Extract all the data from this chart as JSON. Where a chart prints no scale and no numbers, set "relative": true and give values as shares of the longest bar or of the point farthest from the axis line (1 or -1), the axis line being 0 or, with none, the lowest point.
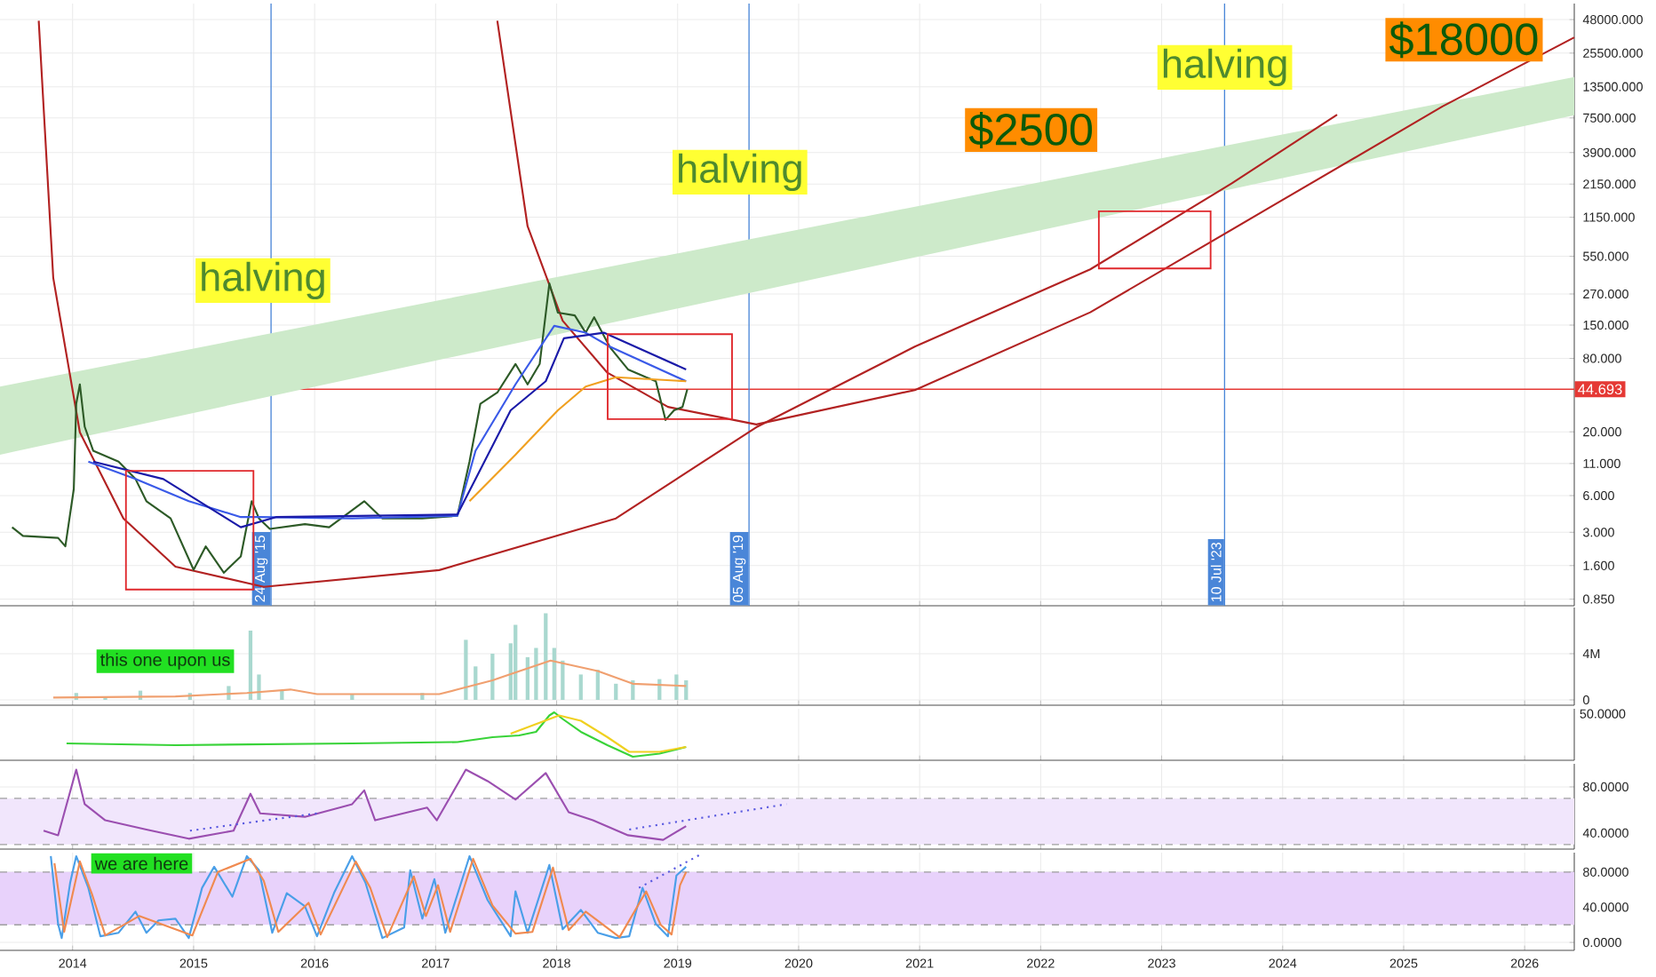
{
  "chart_data": [
    {
      "type": "line",
      "log": true,
      "grid": true,
      "tick_labels": "y",
      "xlim": [
        2013.4,
        2026.41
      ],
      "ylim": [
        0.75,
        65000
      ],
      "xticks": [
        2014,
        2015,
        2016,
        2017,
        2018,
        2019,
        2020,
        2021,
        2022,
        2023,
        2024,
        2025,
        2026
      ],
      "yticks": [
        {
          "value": 0.85,
          "label": "0.850"
        },
        {
          "value": 1.6,
          "label": "1.600"
        },
        {
          "value": 3,
          "label": "3.000"
        },
        {
          "value": 6,
          "label": "6.000"
        },
        {
          "value": 11,
          "label": "11.000"
        },
        {
          "value": 20,
          "label": "20.000"
        },
        {
          "value": 80,
          "label": "80.000"
        },
        {
          "value": 150,
          "label": "150.000"
        },
        {
          "value": 270,
          "label": "270.000"
        },
        {
          "value": 550,
          "label": "550.000"
        },
        {
          "value": 1150,
          "label": "1150.000"
        },
        {
          "value": 2150,
          "label": "2150.000"
        },
        {
          "value": 3900,
          "label": "3900.000"
        },
        {
          "value": 7500,
          "label": "7500.000"
        },
        {
          "value": 13500,
          "label": "13500.000"
        },
        {
          "value": 25500,
          "label": "25500.000"
        },
        {
          "value": 48000,
          "label": "48000.000"
        }
      ],
      "ref_lines": [
        {
          "axis": "y",
          "value": 44.693,
          "label": "44.693",
          "color": "#e53935"
        },
        {
          "axis": "x",
          "value": 2015.64,
          "label": "24 Aug '15",
          "color": "#4a86d8"
        },
        {
          "axis": "x",
          "value": 2019.59,
          "label": "05 Aug '19",
          "color": "#4a86d8"
        },
        {
          "axis": "x",
          "value": 2023.52,
          "label": "10 Jul '23",
          "color": "#4a86d8"
        }
      ],
      "annotations": [
        "halving",
        "halving",
        "halving",
        "$2500",
        "$18000"
      ],
      "series": [
        {
          "type": "line",
          "color": "#8fd18a",
          "x": [
            2013.4,
            2026.41
          ],
          "values": [
            null,
            null
          ],
          "lower": [
            13,
            7900
          ],
          "upper": [
            47,
            16200
          ]
        },
        {
          "type": "line",
          "color": "#b22222",
          "x": [
            2013.72,
            2013.84,
            2014.06,
            2014.42,
            2014.85,
            2015.58,
            2017.03,
            2018.49,
            2019.65,
            2020.96,
            2022.41,
            2023.58,
            2024.45
          ],
          "values": [
            47000,
            366,
            19.8,
            3.9,
            1.57,
            1.07,
            1.47,
            3.9,
            21.8,
            100,
            430,
            2180,
            7960
          ]
        },
        {
          "type": "line",
          "color": "#b22222",
          "x": [
            2017.51,
            2017.76,
            2018.05,
            2018.42,
            2018.92,
            2019.65,
            2020.96,
            2022.41,
            2023.87,
            2025.32,
            2026.41
          ],
          "values": [
            47000,
            970,
            163,
            61,
            32,
            23,
            44,
            191,
            1340,
            9300,
            34300
          ]
        },
        {
          "type": "line",
          "color": "#2d5a27",
          "x": [
            2013.5,
            2013.59,
            2013.88,
            2013.94,
            2014.01,
            2014.03,
            2014.06,
            2014.1,
            2014.17,
            2014.38,
            2014.52,
            2014.61,
            2014.81,
            2015.0,
            2015.1,
            2015.25,
            2015.39,
            2015.48,
            2015.54,
            2015.63,
            2015.92,
            2016.12,
            2016.41,
            2016.56,
            2016.89,
            2017.18,
            2017.28,
            2017.37,
            2017.51,
            2017.66,
            2017.76,
            2017.86,
            2017.94,
            2018.01,
            2018.15,
            2018.24,
            2018.31,
            2018.44,
            2018.59,
            2018.74,
            2018.82,
            2018.9,
            2018.97,
            2019.04,
            2019.08
          ],
          "values": [
            3.3,
            2.8,
            2.7,
            2.3,
            6.8,
            34,
            49,
            22,
            14,
            11.4,
            8.2,
            5.4,
            3.9,
            1.48,
            2.3,
            1.4,
            1.9,
            5.4,
            3.9,
            3.2,
            3.5,
            3.3,
            5.4,
            3.9,
            3.9,
            4.1,
            11.4,
            34,
            42,
            72,
            49,
            72,
            330,
            190,
            180,
            130,
            174,
            99,
            65,
            56,
            52,
            25,
            30,
            32,
            44.693
          ]
        },
        {
          "type": "line",
          "color": "#3a5ae8",
          "x": [
            2014.13,
            2014.52,
            2014.96,
            2015.39,
            2015.54,
            2016.31,
            2017.18,
            2017.33,
            2017.66,
            2017.98,
            2018.24,
            2018.44,
            2019.07
          ],
          "values": [
            11.4,
            8.2,
            5.4,
            4.0,
            4.0,
            3.9,
            4.1,
            14,
            49,
            148,
            130,
            100,
            52
          ]
        },
        {
          "type": "line",
          "color": "#1a1aa8",
          "x": [
            2014.17,
            2014.75,
            2015.39,
            2015.68,
            2017.18,
            2017.62,
            2017.91,
            2018.06,
            2018.39,
            2019.07
          ],
          "values": [
            11.4,
            8.2,
            3.3,
            4.0,
            4.2,
            30,
            52,
            117,
            130,
            65
          ]
        },
        {
          "type": "line",
          "color": "#f0a020",
          "x": [
            2017.28,
            2017.66,
            2018.01,
            2018.24,
            2018.49,
            2019.07
          ],
          "values": [
            5.4,
            13,
            30,
            47,
            56,
            52
          ]
        }
      ]
    },
    {
      "type": "bar",
      "grid": true,
      "tick_labels": "y",
      "xlim": [
        2013.4,
        2026.41
      ],
      "ylim": [
        -460000,
        8000000
      ],
      "xticks": [
        2014,
        2015,
        2016,
        2017,
        2018,
        2019,
        2020,
        2021,
        2022,
        2023,
        2024,
        2025,
        2026
      ],
      "yticks": [
        0,
        {
          "value": 4000000,
          "label": "4M"
        }
      ],
      "annotations": [
        "this one upon us"
      ],
      "series": [
        {
          "type": "bar",
          "color": "#a9d8cf",
          "x": [
            2014.03,
            2014.27,
            2014.56,
            2014.97,
            2015.29,
            2015.47,
            2015.54,
            2015.73,
            2016.31,
            2016.89,
            2017.25,
            2017.33,
            2017.47,
            2017.62,
            2017.66,
            2017.76,
            2017.83,
            2017.91,
            2017.98,
            2018.05,
            2018.2,
            2018.34,
            2018.49,
            2018.63,
            2018.85,
            2018.99,
            2019.07
          ],
          "values": [
            600000,
            300000,
            800000,
            600000,
            1200000,
            6000000,
            2200000,
            800000,
            500000,
            600000,
            5200000,
            2900000,
            4000000,
            4900000,
            6500000,
            3700000,
            4500000,
            7500000,
            4500000,
            3400000,
            2200000,
            2600000,
            1400000,
            1700000,
            1800000,
            2200000,
            1700000
          ]
        },
        {
          "type": "line",
          "color": "#f0a070",
          "x": [
            2013.84,
            2014.85,
            2015.44,
            2015.8,
            2016.02,
            2017.03,
            2017.18,
            2017.47,
            2017.95,
            2018.34,
            2018.63,
            2019.07
          ],
          "values": [
            200000,
            300000,
            600000,
            900000,
            500000,
            500000,
            900000,
            1700000,
            3400000,
            2500000,
            1400000,
            1200000
          ]
        }
      ]
    },
    {
      "type": "line",
      "relative": true,
      "grid": true,
      "tick_labels": false,
      "xlim": [
        2013.4,
        2026.41
      ],
      "xticks": [
        2014,
        2015,
        2016,
        2017,
        2018,
        2019,
        2020,
        2021,
        2022,
        2023,
        2024,
        2025,
        2026
      ],
      "annotations": [
        "50.0000"
      ],
      "series": [
        {
          "color": "#39d339",
          "x": [
            2013.95,
            2014.85,
            2016.31,
            2017.18,
            2017.47,
            2017.69,
            2017.83,
            2017.94,
            2017.98,
            2018.05,
            2018.2,
            2018.42,
            2018.63,
            2018.85,
            2019.07
          ],
          "values": [
            0.3,
            0.26,
            0.3,
            0.33,
            0.44,
            0.48,
            0.56,
            0.93,
            1.0,
            0.85,
            0.56,
            0.26,
            0.0,
            0.07,
            0.22
          ]
        },
        {
          "color": "#f0d020",
          "x": [
            2017.62,
            2018.02,
            2018.2,
            2018.42,
            2018.6,
            2018.85,
            2019.07
          ],
          "values": [
            0.52,
            0.93,
            0.81,
            0.44,
            0.11,
            0.11,
            0.22
          ]
        }
      ]
    },
    {
      "type": "line",
      "grid": true,
      "tick_labels": "y",
      "xlim": [
        2013.4,
        2026.41
      ],
      "ylim": [
        26,
        100
      ],
      "xticks": [
        2014,
        2015,
        2016,
        2017,
        2018,
        2019,
        2020,
        2021,
        2022,
        2023,
        2024,
        2025,
        2026
      ],
      "yticks": [
        {
          "value": 80,
          "label": "80.0000"
        },
        {
          "value": 40,
          "label": "40.0000"
        }
      ],
      "bands": [
        {
          "axis": "y",
          "from": 30,
          "to": 70,
          "color": "#f1e6fc"
        }
      ],
      "ref_lines": [
        {
          "axis": "y",
          "value": 70,
          "color": "#9e9e9e",
          "line_style": "dashed"
        },
        {
          "axis": "y",
          "value": 30,
          "color": "#9e9e9e",
          "line_style": "dashed"
        }
      ],
      "series": [
        {
          "color": "#9b4fb0",
          "x": [
            2013.76,
            2013.88,
            2014.03,
            2014.1,
            2014.27,
            2014.61,
            2014.96,
            2015.33,
            2015.47,
            2015.55,
            2015.92,
            2016.31,
            2016.41,
            2016.5,
            2016.93,
            2017.01,
            2017.25,
            2017.43,
            2017.66,
            2017.91,
            2018.1,
            2018.3,
            2018.59,
            2018.88,
            2019.07
          ],
          "values": [
            42,
            38,
            95,
            65,
            51,
            43,
            35,
            42,
            74,
            57,
            54,
            65,
            77,
            51,
            62,
            51,
            95,
            85,
            69,
            92,
            58,
            51,
            38,
            34,
            46
          ]
        },
        {
          "color": "#5a5ae0",
          "line_style": "dotted",
          "x": [
            2014.97,
            2016.02
          ],
          "values": [
            42,
            57
          ]
        },
        {
          "color": "#5a5ae0",
          "line_style": "dotted",
          "x": [
            2018.6,
            2019.9
          ],
          "values": [
            43,
            65
          ]
        }
      ]
    },
    {
      "type": "line",
      "grid": true,
      "xlim": [
        2013.4,
        2026.41
      ],
      "ylim": [
        -9,
        102
      ],
      "xticks": [
        2014,
        2015,
        2016,
        2017,
        2018,
        2019,
        2020,
        2021,
        2022,
        2023,
        2024,
        2025,
        2026
      ],
      "yticks": [
        {
          "value": 80,
          "label": "80.0000"
        },
        {
          "value": 40,
          "label": "40.0000"
        },
        {
          "value": 0,
          "label": "0.0000"
        }
      ],
      "bands": [
        {
          "axis": "y",
          "from": 20,
          "to": 80,
          "color": "#e8d2fb"
        }
      ],
      "ref_lines": [
        {
          "axis": "y",
          "value": 80,
          "color": "#9e9e9e",
          "line_style": "dashed"
        },
        {
          "axis": "y",
          "value": 20,
          "color": "#9e9e9e",
          "line_style": "dashed"
        }
      ],
      "annotations": [
        "we are here"
      ],
      "series": [
        {
          "color": "#4a9fe8",
          "x": [
            2013.82,
            2013.88,
            2013.91,
            2013.98,
            2014.03,
            2014.13,
            2014.23,
            2014.38,
            2014.52,
            2014.61,
            2014.71,
            2014.85,
            2014.96,
            2015.07,
            2015.17,
            2015.32,
            2015.44,
            2015.54,
            2015.65,
            2015.77,
            2015.92,
            2016.02,
            2016.16,
            2016.31,
            2016.42,
            2016.56,
            2016.74,
            2016.79,
            2016.89,
            2016.99,
            2017.08,
            2017.28,
            2017.43,
            2017.62,
            2017.66,
            2017.76,
            2017.94,
            2018.05,
            2018.2,
            2018.34,
            2018.49,
            2018.6,
            2018.71,
            2018.82,
            2018.92,
            2018.99,
            2019.07
          ],
          "values": [
            98,
            21,
            5,
            68,
            98,
            62,
            7,
            11,
            35,
            11,
            25,
            27,
            5,
            62,
            86,
            52,
            98,
            82,
            11,
            56,
            41,
            7,
            56,
            98,
            68,
            5,
            17,
            82,
            27,
            72,
            11,
            98,
            48,
            7,
            58,
            11,
            88,
            15,
            37,
            11,
            5,
            7,
            62,
            21,
            7,
            76,
            86
          ]
        },
        {
          "color": "#f08a50",
          "x": [
            2013.85,
            2013.93,
            2014.06,
            2014.16,
            2014.27,
            2014.55,
            2014.99,
            2015.2,
            2015.47,
            2015.58,
            2015.7,
            2015.95,
            2016.05,
            2016.34,
            2016.46,
            2016.6,
            2016.82,
            2016.92,
            2017.02,
            2017.12,
            2017.31,
            2017.47,
            2017.66,
            2017.8,
            2017.97,
            2018.1,
            2018.24,
            2018.52,
            2018.74,
            2018.86,
            2018.95,
            2019.02,
            2019.07
          ],
          "values": [
            90,
            12,
            92,
            55,
            8,
            30,
            8,
            80,
            95,
            70,
            12,
            45,
            9,
            92,
            62,
            6,
            75,
            30,
            65,
            12,
            95,
            42,
            10,
            12,
            85,
            14,
            35,
            6,
            58,
            20,
            9,
            65,
            80
          ]
        },
        {
          "color": "#5a5ae0",
          "line_style": "dotted",
          "x": [
            2018.68,
            2019.19
          ],
          "values": [
            62,
            100
          ]
        }
      ]
    }
  ]
}
